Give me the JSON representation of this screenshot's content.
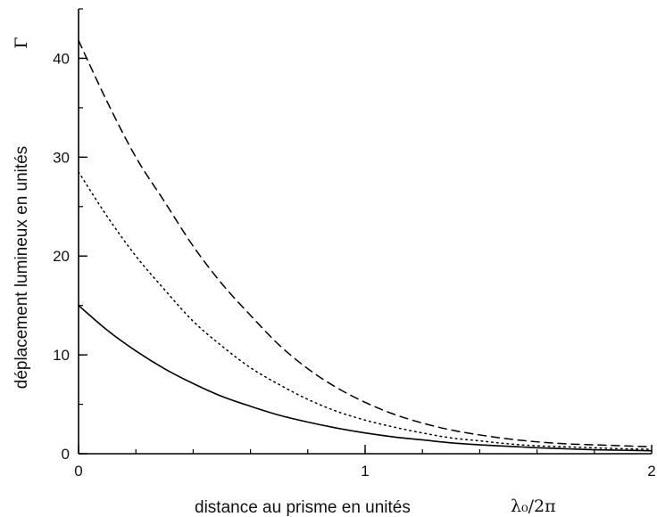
{
  "chart_data": {
    "type": "line",
    "xlabel": "distance au prisme  en unités",
    "xlabel_unit": "λ₀/2π",
    "ylabel": "déplacement lumineux en unités",
    "ylabel_unit": "Γ",
    "xlim": [
      0,
      2
    ],
    "ylim": [
      0,
      45
    ],
    "x_ticks": [
      {
        "value": 0,
        "label": "0"
      },
      {
        "value": 1,
        "label": "1"
      },
      {
        "value": 2,
        "label": "2"
      }
    ],
    "x_minor_step": 0.2,
    "y_ticks": [
      {
        "value": 0,
        "label": "0"
      },
      {
        "value": 10,
        "label": "10"
      },
      {
        "value": 20,
        "label": "20"
      },
      {
        "value": 30,
        "label": "30"
      },
      {
        "value": 40,
        "label": "40"
      }
    ],
    "y_minor_step": 5,
    "grid": false,
    "x": [
      0,
      0.1,
      0.2,
      0.3,
      0.4,
      0.5,
      0.6,
      0.7,
      0.8,
      0.9,
      1.0,
      1.1,
      1.2,
      1.3,
      1.4,
      1.5,
      1.6,
      1.7,
      1.8,
      1.9,
      2.0
    ],
    "series": [
      {
        "style": "dashed",
        "values": [
          41.8,
          35.6,
          30.0,
          25.5,
          21.0,
          17.2,
          14.0,
          11.0,
          8.6,
          6.7,
          5.2,
          4.0,
          3.1,
          2.4,
          1.9,
          1.5,
          1.2,
          1.0,
          0.9,
          0.8,
          0.7
        ]
      },
      {
        "style": "dotted",
        "values": [
          28.5,
          24.0,
          20.0,
          16.6,
          13.4,
          10.9,
          8.7,
          7.0,
          5.5,
          4.3,
          3.4,
          2.7,
          2.1,
          1.6,
          1.3,
          1.0,
          0.8,
          0.7,
          0.6,
          0.5,
          0.45
        ]
      },
      {
        "style": "solid",
        "values": [
          15.0,
          12.5,
          10.4,
          8.6,
          7.1,
          5.8,
          4.8,
          3.9,
          3.2,
          2.6,
          2.1,
          1.7,
          1.4,
          1.1,
          0.9,
          0.75,
          0.6,
          0.5,
          0.4,
          0.35,
          0.3
        ]
      }
    ]
  }
}
